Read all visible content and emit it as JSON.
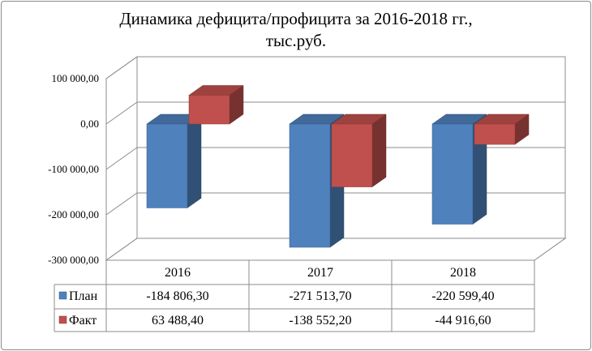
{
  "title": {
    "line1": "Динамика дефицита/профицита за 2016-2018 гг.,",
    "line2": "тыс.руб."
  },
  "chart_data": {
    "type": "bar",
    "title": "Динамика дефицита/профицита за 2016-2018 гг., тыс.руб.",
    "categories": [
      "2016",
      "2017",
      "2018"
    ],
    "series": [
      {
        "name": "План",
        "values": [
          -184806.3,
          -271513.7,
          -220599.4
        ],
        "labels": [
          "-184 806,30",
          "-271 513,70",
          "-220 599,40"
        ],
        "color": "#4f81bd"
      },
      {
        "name": "Факт",
        "values": [
          63488.4,
          -138552.2,
          -44916.6
        ],
        "labels": [
          "63 488,40",
          "-138 552,20",
          "-44 916,60"
        ],
        "color": "#c0504d"
      }
    ],
    "ylim": [
      -300000,
      100000
    ],
    "yticks": [
      100000,
      0,
      -100000,
      -200000,
      -300000
    ],
    "ytick_labels": [
      "100 000,00",
      "0,00",
      "-100 000,00",
      "-200 000,00",
      "-300 000,00"
    ],
    "grid": true,
    "style": "3d-clustered-column",
    "legend": "data-table"
  }
}
